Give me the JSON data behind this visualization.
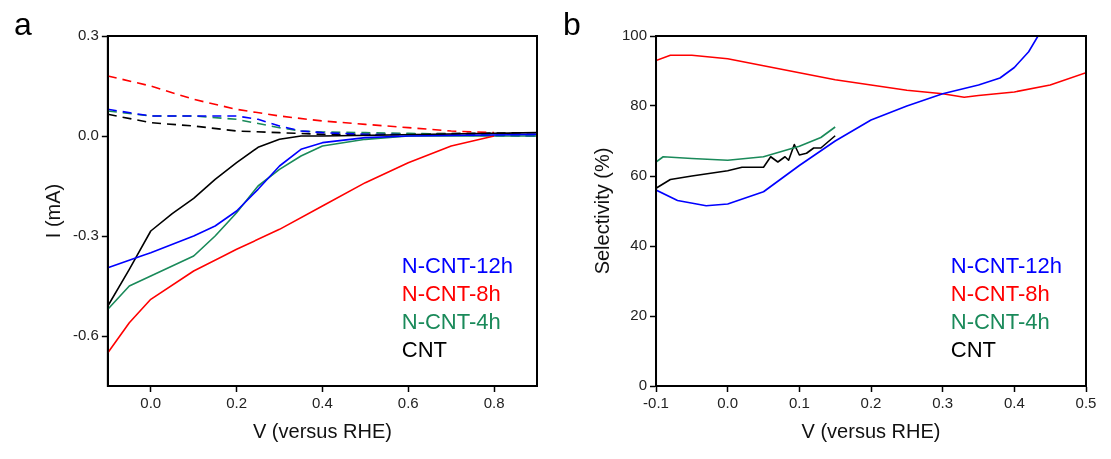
{
  "chart_data": [
    {
      "type": "line",
      "title": "a",
      "xlabel": "V (versus RHE)",
      "ylabel": "I (mA)",
      "xlim": [
        -0.1,
        0.9
      ],
      "xticks": [
        {
          "value": 0,
          "label": "0.0"
        },
        0.2,
        0.4,
        0.6,
        0.8
      ],
      "ylim": [
        -0.75,
        0.3
      ],
      "yticks": [
        -0.6,
        -0.3,
        {
          "value": 0,
          "label": "0.0"
        },
        0.3
      ],
      "grid": false,
      "legend": "bottom right",
      "marker": "none",
      "line_style": "solid",
      "series": [
        {
          "name": "N-CNT-12h",
          "color": "#0000ff",
          "x": [
            -0.1,
            0.0,
            0.1,
            0.15,
            0.2,
            0.25,
            0.3,
            0.35,
            0.4,
            0.5,
            0.6,
            0.9
          ],
          "values": [
            -0.395,
            -0.35,
            -0.3,
            -0.27,
            -0.225,
            -0.16,
            -0.09,
            -0.04,
            -0.02,
            -0.005,
            0,
            0.005
          ]
        },
        {
          "name": "N-CNT-8h",
          "color": "#ff0000",
          "x": [
            -0.1,
            -0.05,
            0.0,
            0.1,
            0.2,
            0.3,
            0.4,
            0.5,
            0.6,
            0.7,
            0.8
          ],
          "values": [
            -0.65,
            -0.56,
            -0.49,
            -0.405,
            -0.34,
            -0.28,
            -0.21,
            -0.14,
            -0.08,
            -0.03,
            0
          ]
        },
        {
          "name": "N-CNT-4h",
          "color": "#1a8a5a",
          "x": [
            -0.1,
            -0.05,
            0.0,
            0.1,
            0.15,
            0.2,
            0.25,
            0.3,
            0.35,
            0.4,
            0.5,
            0.6,
            0.9
          ],
          "values": [
            -0.52,
            -0.45,
            -0.42,
            -0.36,
            -0.3,
            -0.23,
            -0.15,
            -0.1,
            -0.06,
            -0.03,
            -0.01,
            0,
            0
          ]
        },
        {
          "name": "CNT",
          "color": "#000000",
          "x": [
            -0.1,
            -0.05,
            0.0,
            0.05,
            0.1,
            0.15,
            0.2,
            0.25,
            0.3,
            0.35,
            0.4,
            0.9
          ],
          "values": [
            -0.51,
            -0.4,
            -0.285,
            -0.233,
            -0.187,
            -0.13,
            -0.08,
            -0.034,
            -0.01,
            0,
            0,
            0.01
          ]
        },
        {
          "color": "#ff0000",
          "line_style": "dashed",
          "x": [
            -0.1,
            0.0,
            0.1,
            0.2,
            0.3,
            0.4,
            0.5,
            0.6,
            0.7,
            0.8
          ],
          "values": [
            0.18,
            0.15,
            0.11,
            0.08,
            0.06,
            0.045,
            0.035,
            0.025,
            0.015,
            0.01
          ]
        },
        {
          "color": "#0000ff",
          "line_style": "dashed",
          "x": [
            -0.1,
            0.0,
            0.1,
            0.2,
            0.25,
            0.3,
            0.35,
            0.4,
            0.5,
            0.9
          ],
          "values": [
            0.08,
            0.06,
            0.06,
            0.06,
            0.05,
            0.03,
            0.015,
            0.01,
            0.005,
            0
          ]
        },
        {
          "color": "#1a8a5a",
          "line_style": "dashed",
          "x": [
            -0.1,
            0.0,
            0.1,
            0.2,
            0.3,
            0.35,
            0.4,
            0.5,
            0.6,
            0.9
          ],
          "values": [
            0.075,
            0.06,
            0.06,
            0.05,
            0.025,
            0.015,
            0.012,
            0.01,
            0.008,
            0
          ]
        },
        {
          "color": "#000000",
          "line_style": "dashed",
          "x": [
            -0.1,
            0.0,
            0.1,
            0.2,
            0.3,
            0.4,
            0.5,
            0.9
          ],
          "values": [
            0.065,
            0.04,
            0.03,
            0.015,
            0.01,
            0.005,
            0.005,
            0.01
          ]
        }
      ]
    },
    {
      "type": "line",
      "title": "b",
      "xlabel": "V (versus RHE)",
      "ylabel": "Selectivity (%)",
      "xlim": [
        -0.1,
        0.5
      ],
      "xticks": [
        -0.1,
        {
          "value": 0,
          "label": "0.0"
        },
        0.1,
        0.2,
        0.3,
        0.4,
        0.5
      ],
      "ylim": [
        0,
        100
      ],
      "yticks": [
        0,
        20,
        40,
        60,
        80,
        100
      ],
      "grid": false,
      "legend": "bottom right",
      "marker": "none",
      "line_style": "solid",
      "series": [
        {
          "name": "N-CNT-12h",
          "color": "#0000ff",
          "x": [
            -0.1,
            -0.07,
            -0.03,
            0.0,
            0.05,
            0.1,
            0.15,
            0.2,
            0.25,
            0.3,
            0.35,
            0.38,
            0.4,
            0.42,
            0.433
          ],
          "values": [
            56,
            53,
            51.5,
            52,
            55.5,
            63,
            70,
            76,
            80,
            83.5,
            86,
            88,
            91,
            95.5,
            100
          ]
        },
        {
          "name": "N-CNT-8h",
          "color": "#ff0000",
          "x": [
            -0.1,
            -0.08,
            -0.05,
            0.0,
            0.05,
            0.1,
            0.15,
            0.2,
            0.25,
            0.3,
            0.33,
            0.35,
            0.4,
            0.45,
            0.5
          ],
          "values": [
            93,
            94.5,
            94.5,
            93.5,
            91.5,
            89.5,
            87.5,
            86,
            84.5,
            83.5,
            82.5,
            83,
            84,
            86,
            89.5
          ]
        },
        {
          "name": "N-CNT-4h",
          "color": "#1a8a5a",
          "x": [
            -0.1,
            -0.09,
            -0.05,
            0.0,
            0.05,
            0.1,
            0.13,
            0.15
          ],
          "values": [
            64,
            65.5,
            65,
            64.5,
            65.5,
            68.5,
            71,
            74
          ]
        },
        {
          "name": "CNT",
          "color": "#000000",
          "x": [
            -0.1,
            -0.08,
            -0.05,
            0.0,
            0.02,
            0.05,
            0.06,
            0.07,
            0.08,
            0.085,
            0.093,
            0.1,
            0.11,
            0.12,
            0.13,
            0.15
          ],
          "values": [
            56.5,
            59,
            60,
            61.5,
            62.5,
            62.5,
            65.5,
            64,
            65.5,
            64.5,
            69,
            66,
            66.5,
            68,
            68,
            71.5
          ]
        }
      ]
    }
  ]
}
